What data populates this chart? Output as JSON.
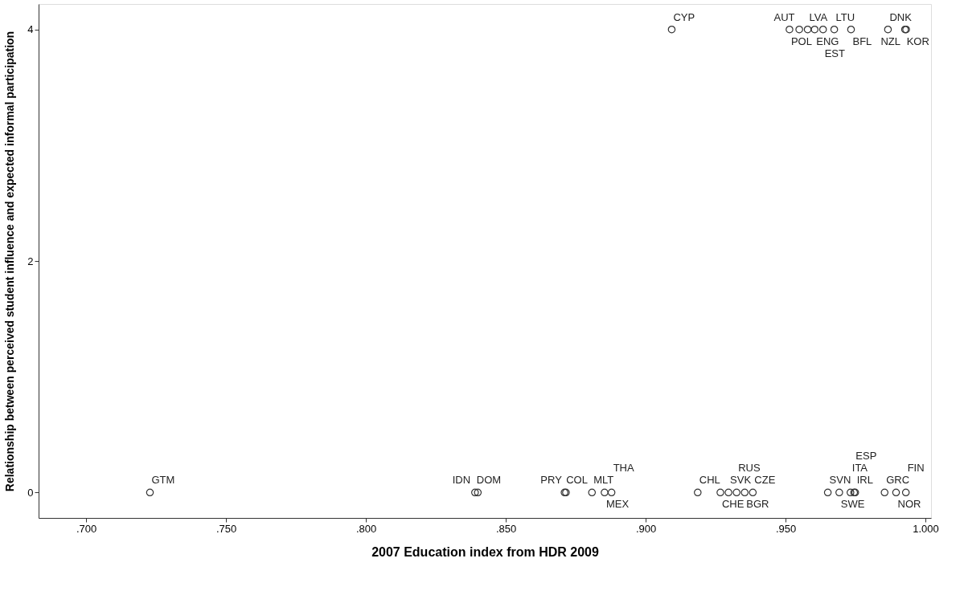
{
  "chart_data": {
    "type": "scatter",
    "xlabel": "2007 Education index from HDR 2009",
    "ylabel": "Relationship between perceived student influence and expected informal participation",
    "x": [
      0.7228,
      0.839,
      0.84,
      0.871,
      0.8715,
      0.8808,
      0.8853,
      0.8878,
      0.9186,
      0.9267,
      0.9296,
      0.9325,
      0.9383,
      0.9354,
      0.9651,
      0.9692,
      0.9732,
      0.9749,
      0.9745,
      0.9854,
      0.9895,
      0.993,
      0.9093,
      0.9579,
      0.9549,
      0.9604,
      0.9634,
      0.9674,
      0.9734,
      0.9866,
      0.9927,
      0.9931,
      0.9514
    ],
    "values": [
      0,
      0,
      0,
      0,
      0,
      0,
      0,
      0,
      0,
      0,
      0,
      0,
      0,
      0,
      0,
      0,
      0,
      0,
      0,
      0,
      0,
      0,
      4,
      4,
      4,
      4,
      4,
      4,
      4,
      4,
      4,
      4,
      4
    ],
    "value_labels": [
      "GTM",
      "DOM",
      "IDN",
      "COL",
      "PRY",
      "MLT",
      "MEX",
      "THA",
      "CHL",
      "CHE",
      "SVK",
      "RUS",
      "CZE",
      "BGR",
      "SVN",
      "SWE",
      "ITA",
      "IRL",
      "ESP",
      "GRC",
      "NOR",
      "FIN",
      "CYP",
      "LVA",
      "AUT",
      "ENG",
      "EST",
      "LTU",
      "BFL",
      "DNK",
      "KOR",
      "NZL",
      "POL"
    ],
    "color": "#333333",
    "marker": "circle",
    "grid": false,
    "xlim": [
      0.683,
      1.002
    ],
    "xticks": [
      {
        "value": 0.7,
        "label": ".700"
      },
      {
        "value": 0.75,
        "label": ".750"
      },
      {
        "value": 0.8,
        "label": ".800"
      },
      {
        "value": 0.85,
        "label": ".850"
      },
      {
        "value": 0.9,
        "label": ".900"
      },
      {
        "value": 0.95,
        "label": ".950"
      },
      {
        "value": 1.0,
        "label": "1.000"
      }
    ],
    "ylim": [
      -0.22,
      4.22
    ],
    "yticks": [
      0,
      2,
      4
    ]
  }
}
